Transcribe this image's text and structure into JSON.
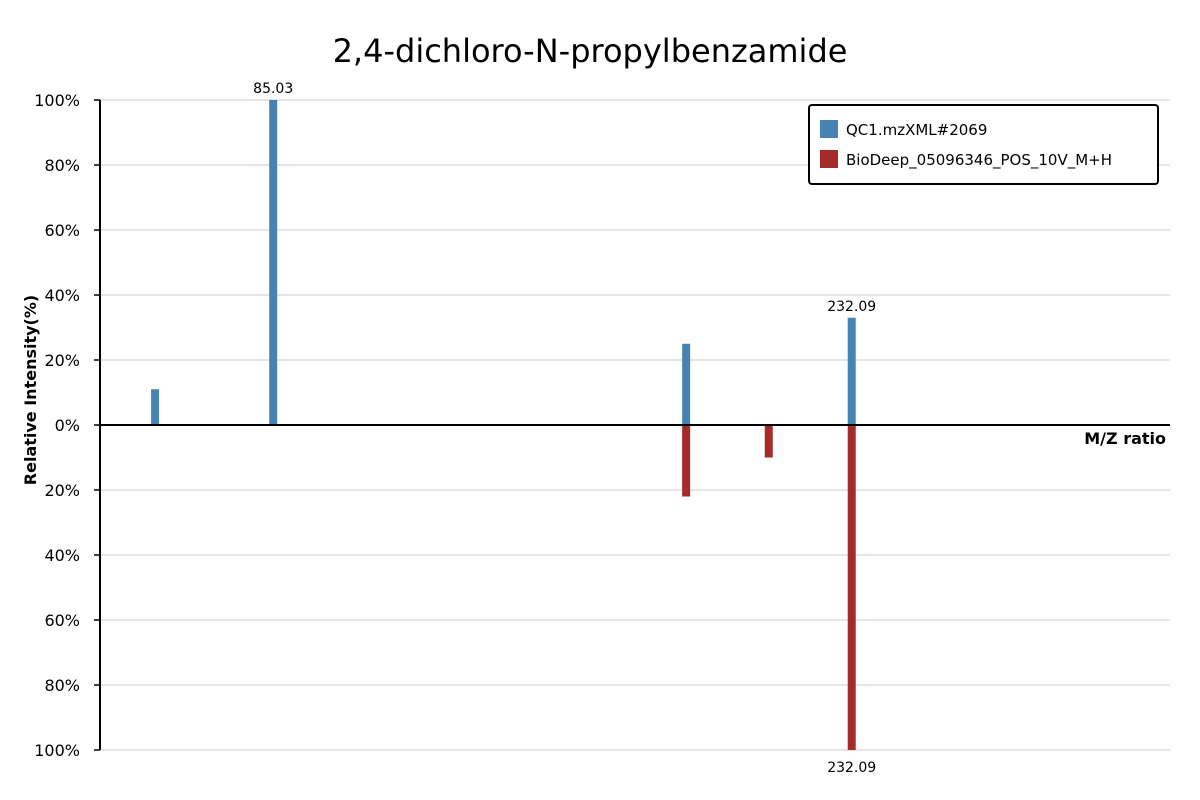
{
  "chart_data": {
    "type": "bar",
    "title": "2,4-dichloro-N-propylbenzamide",
    "xlabel": "M/Z ratio",
    "ylabel": "Relative Intensity(%)",
    "ylim": [
      -100,
      100
    ],
    "y_ticks": [
      {
        "value": 100,
        "label": "100%"
      },
      {
        "value": 80,
        "label": "80%"
      },
      {
        "value": 60,
        "label": "60%"
      },
      {
        "value": 40,
        "label": "40%"
      },
      {
        "value": 20,
        "label": "20%"
      },
      {
        "value": 0,
        "label": "0%"
      },
      {
        "value": -20,
        "label": "20%"
      },
      {
        "value": -40,
        "label": "40%"
      },
      {
        "value": -60,
        "label": "60%"
      },
      {
        "value": -80,
        "label": "80%"
      },
      {
        "value": -100,
        "label": "100%"
      }
    ],
    "grid": true,
    "legend_position": "top-right",
    "series": [
      {
        "name": "QC1.mzXML#2069",
        "color": "#4682b4",
        "direction": "up",
        "peaks": [
          {
            "mz": 55.0,
            "intensity": 11,
            "label": ""
          },
          {
            "mz": 85.03,
            "intensity": 100,
            "label": "85.03"
          },
          {
            "mz": 190.0,
            "intensity": 25,
            "label": ""
          },
          {
            "mz": 232.09,
            "intensity": 33,
            "label": "232.09"
          }
        ]
      },
      {
        "name": "BioDeep_05096346_POS_10V_M+H",
        "color": "#a52a2a",
        "direction": "down",
        "peaks": [
          {
            "mz": 190.0,
            "intensity": 22,
            "label": ""
          },
          {
            "mz": 211.0,
            "intensity": 10,
            "label": ""
          },
          {
            "mz": 232.09,
            "intensity": 100,
            "label": "232.09"
          }
        ]
      }
    ],
    "x_range": [
      41.0,
      313.0
    ]
  }
}
